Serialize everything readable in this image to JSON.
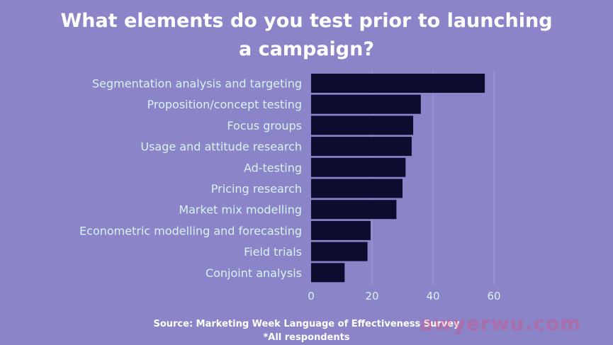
{
  "chart_data": {
    "type": "bar",
    "orientation": "horizontal",
    "title": "What elements do you test prior to launching\na campaign?",
    "categories": [
      "Segmentation analysis and targeting",
      "Proposition/concept testing",
      "Focus groups",
      "Usage and attitude research",
      "Ad-testing",
      "Pricing research",
      "Market mix modelling",
      "Econometric modelling and forecasting",
      "Field trials",
      "Conjoint analysis"
    ],
    "values": [
      57,
      36,
      33.5,
      33,
      31,
      30,
      28,
      19.5,
      18.5,
      11
    ],
    "xticks": [
      0,
      20,
      40,
      60
    ],
    "xlim": [
      0,
      60
    ],
    "xlabel": "",
    "ylabel": "",
    "grid": "vertical",
    "colors": {
      "background": "#8b84c8",
      "bar": "#0c0c2e",
      "label": "#d8f3ef",
      "tick": "#d8f3ef",
      "grid": "#a39dd3"
    }
  },
  "source": "Source: Marketing Week Language of Effectiveness Survey",
  "note": "*All respondents",
  "watermark": "awyerwu.com"
}
